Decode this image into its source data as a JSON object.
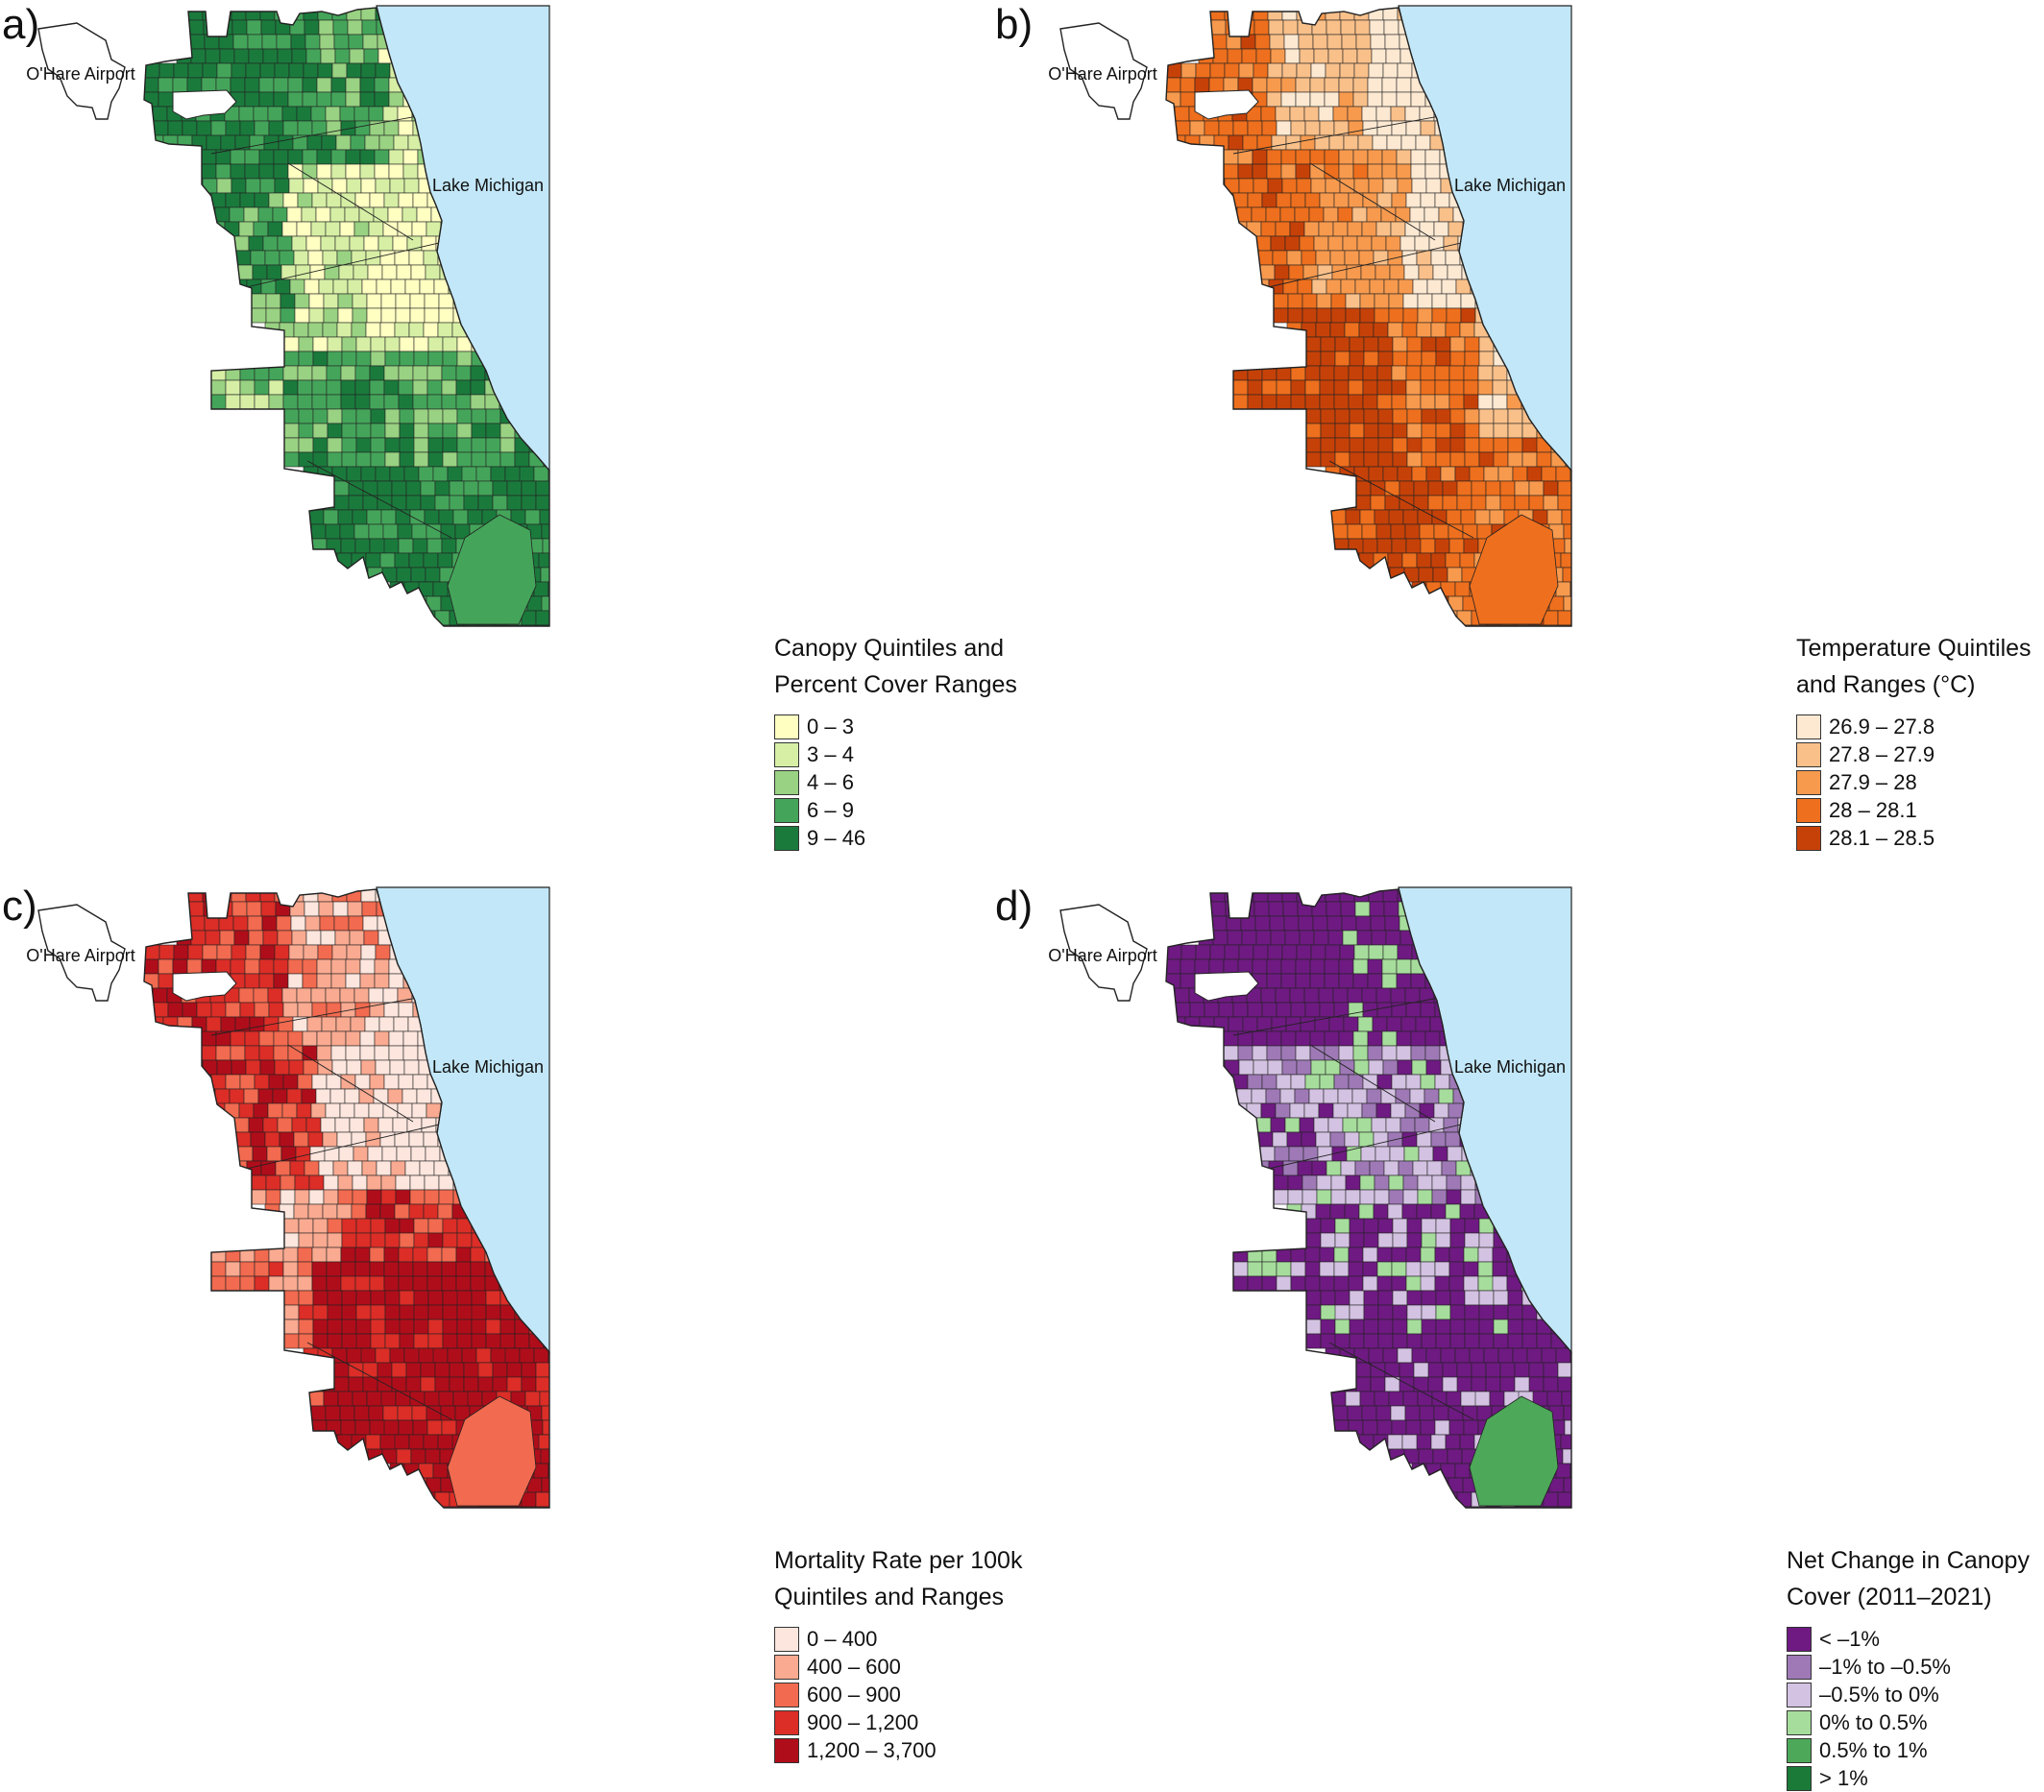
{
  "place_labels": {
    "airport": "O'Hare Airport",
    "lake": "Lake Michigan"
  },
  "panels": [
    {
      "id": "a",
      "label": "a)",
      "variable": "canopy",
      "legend": {
        "title_lines": [
          "Canopy Quintiles and",
          "Percent Cover Ranges"
        ],
        "items": [
          {
            "label": "0 – 3",
            "color": "#ffffc2"
          },
          {
            "label": "3 – 4",
            "color": "#d6efa5"
          },
          {
            "label": "4 – 6",
            "color": "#99d282"
          },
          {
            "label": "6 – 9",
            "color": "#44a55a"
          },
          {
            "label": "9 – 46",
            "color": "#1a7a3c"
          }
        ]
      }
    },
    {
      "id": "b",
      "label": "b)",
      "variable": "temperature",
      "legend": {
        "title_lines": [
          "Temperature Quintiles",
          "and Ranges (°C)"
        ],
        "items": [
          {
            "label": "26.9 – 27.8",
            "color": "#fde9d2"
          },
          {
            "label": "27.8 – 27.9",
            "color": "#f9c08a"
          },
          {
            "label": "27.9 – 28",
            "color": "#f79a4e"
          },
          {
            "label": "28 – 28.1",
            "color": "#ee6f1d"
          },
          {
            "label": "28.1 – 28.5",
            "color": "#c64108"
          }
        ]
      }
    },
    {
      "id": "c",
      "label": "c)",
      "variable": "mortality",
      "legend": {
        "title_lines": [
          "Mortality Rate per 100k",
          "Quintiles and Ranges"
        ],
        "items": [
          {
            "label": "0 – 400",
            "color": "#fde6de"
          },
          {
            "label": "400 – 600",
            "color": "#f9aa91"
          },
          {
            "label": "600 – 900",
            "color": "#f26a4f"
          },
          {
            "label": "900 – 1,200",
            "color": "#dc2d27"
          },
          {
            "label": "1,200 – 3,700",
            "color": "#b00d1a"
          }
        ]
      }
    },
    {
      "id": "d",
      "label": "d)",
      "variable": "canopy_change",
      "legend": {
        "title_lines": [
          "Net Change in Canopy",
          "Cover (2011–2021)"
        ],
        "items": [
          {
            "label": "< –1%",
            "color": "#6e1a82"
          },
          {
            "label": "–1% to –0.5%",
            "color": "#9e79b6"
          },
          {
            "label": "–0.5% to 0%",
            "color": "#d3c2e2"
          },
          {
            "label": "0% to 0.5%",
            "color": "#a6dd9c"
          },
          {
            "label": "0.5% to 1%",
            "color": "#4ea85a"
          },
          {
            "label": "> 1%",
            "color": "#1b7a38"
          }
        ]
      }
    }
  ],
  "colors": {
    "lake": "#c2e7f8",
    "outline": "#222222"
  }
}
